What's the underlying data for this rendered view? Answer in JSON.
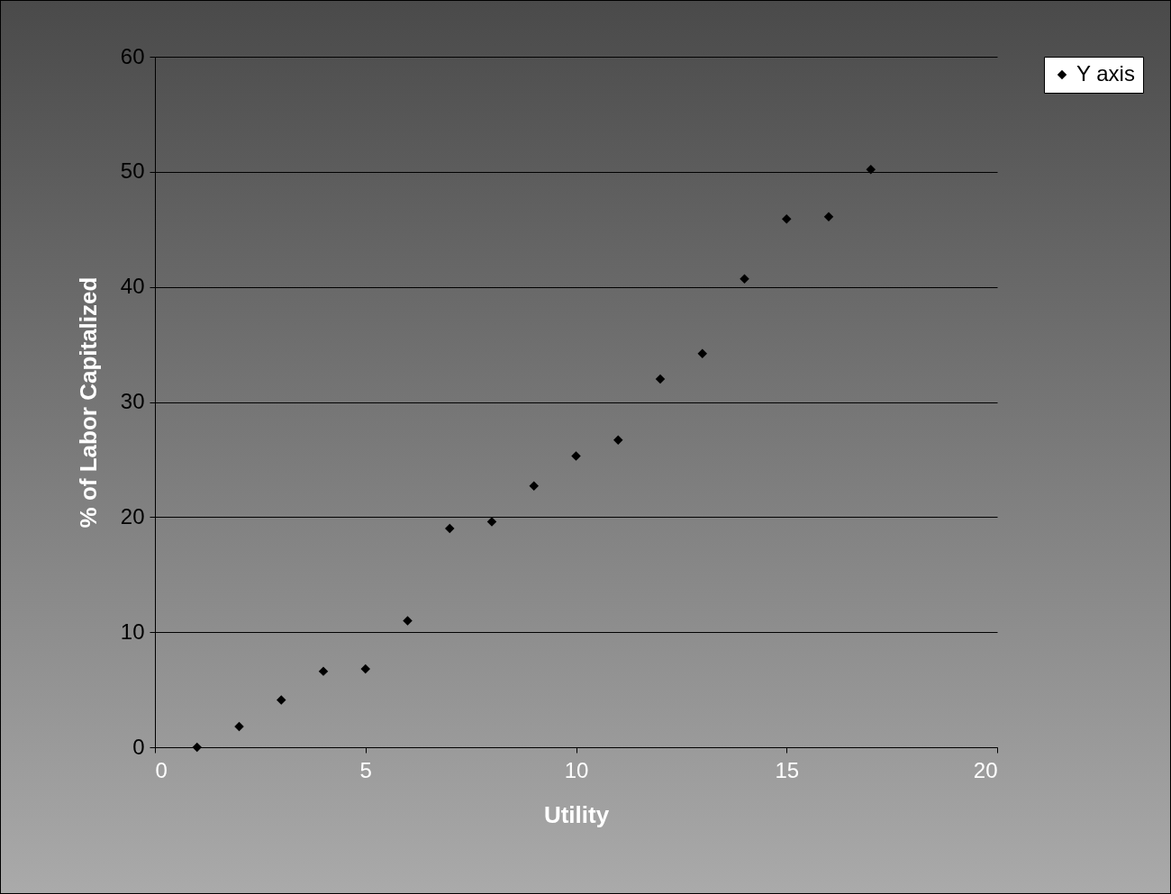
{
  "chart_data": {
    "type": "scatter",
    "xlabel": "Utility",
    "ylabel": "% of Labor Capitalized",
    "xlim": [
      0,
      20
    ],
    "xticks": [
      0,
      5,
      10,
      15,
      20
    ],
    "ylim": [
      0,
      60
    ],
    "yticks": [
      0,
      10,
      20,
      30,
      40,
      50,
      60
    ],
    "grid": "y",
    "legend": "right",
    "marker": "diamond",
    "series": [
      {
        "name": "Y axis",
        "color": "#000000",
        "x": [
          1,
          2,
          3,
          4,
          5,
          6,
          7,
          8,
          9,
          10,
          11,
          12,
          13,
          14,
          15,
          16,
          17
        ],
        "values": [
          0,
          1.8,
          4.1,
          6.6,
          6.8,
          11.0,
          19.0,
          19.6,
          22.7,
          25.3,
          26.7,
          32.0,
          34.2,
          40.7,
          45.9,
          46.1,
          50.2
        ]
      }
    ]
  }
}
